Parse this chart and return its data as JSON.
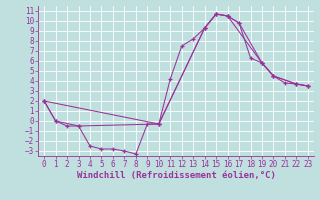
{
  "xlabel": "Windchill (Refroidissement éolien,°C)",
  "xlim": [
    -0.5,
    23.5
  ],
  "ylim": [
    -3.5,
    11.5
  ],
  "xticks": [
    0,
    1,
    2,
    3,
    4,
    5,
    6,
    7,
    8,
    9,
    10,
    11,
    12,
    13,
    14,
    15,
    16,
    17,
    18,
    19,
    20,
    21,
    22,
    23
  ],
  "yticks": [
    -3,
    -2,
    -1,
    0,
    1,
    2,
    3,
    4,
    5,
    6,
    7,
    8,
    9,
    10,
    11
  ],
  "bg_color": "#c0e0e0",
  "line_color": "#993399",
  "grid_color": "#ffffff",
  "tick_fontsize": 5.5,
  "label_fontsize": 6.5,
  "curve1_x": [
    0,
    1,
    2,
    3,
    4,
    5,
    6,
    7,
    8,
    9,
    10,
    11,
    12,
    13,
    14,
    15,
    16,
    17,
    18,
    19,
    20,
    21,
    22,
    23
  ],
  "curve1_y": [
    2.0,
    0.0,
    -0.5,
    -0.5,
    -2.5,
    -2.8,
    -2.8,
    -3.0,
    -3.3,
    -0.3,
    -0.3,
    4.2,
    7.5,
    8.2,
    9.3,
    10.7,
    10.5,
    9.8,
    6.3,
    5.8,
    4.5,
    3.8,
    3.7,
    3.5
  ],
  "curve2_x": [
    0,
    1,
    3,
    10,
    14,
    15,
    16,
    17,
    19,
    20,
    22,
    23
  ],
  "curve2_y": [
    2.0,
    0.0,
    -0.5,
    -0.3,
    9.3,
    10.7,
    10.5,
    9.8,
    5.8,
    4.5,
    3.7,
    3.5
  ],
  "curve3_x": [
    0,
    10,
    14,
    15,
    16,
    19,
    20,
    22,
    23
  ],
  "curve3_y": [
    2.0,
    -0.3,
    9.3,
    10.7,
    10.5,
    5.8,
    4.5,
    3.7,
    3.5
  ]
}
